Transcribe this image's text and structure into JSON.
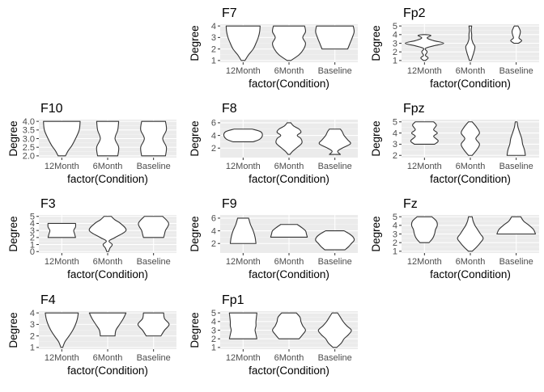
{
  "chart_data": [
    {
      "type": "violin",
      "title": "F7",
      "xlabel": "factor(Condition)",
      "ylabel": "Degree",
      "categories": [
        "12Month",
        "6Month",
        "Baseline"
      ],
      "yticks": [
        "1",
        "2",
        "3",
        "4"
      ],
      "ylim": [
        0.85,
        4.15
      ],
      "violins": [
        {
          "category": "12Month",
          "profile": [
            [
              1,
              0.04
            ],
            [
              1.5,
              0.12
            ],
            [
              2,
              0.22
            ],
            [
              2.5,
              0.28
            ],
            [
              3,
              0.33
            ],
            [
              3.5,
              0.36
            ],
            [
              4,
              0.37
            ]
          ]
        },
        {
          "category": "6Month",
          "profile": [
            [
              1,
              0.04
            ],
            [
              1.5,
              0.22
            ],
            [
              2,
              0.32
            ],
            [
              2.5,
              0.36
            ],
            [
              3,
              0.3
            ],
            [
              3.5,
              0.36
            ],
            [
              4,
              0.34
            ]
          ]
        },
        {
          "category": "Baseline",
          "profile": [
            [
              2,
              0.28
            ],
            [
              2.5,
              0.33
            ],
            [
              3,
              0.38
            ],
            [
              3.5,
              0.42
            ],
            [
              4,
              0.4
            ]
          ]
        }
      ]
    },
    {
      "type": "violin",
      "title": "Fp2",
      "xlabel": "factor(Condition)",
      "ylabel": "Degree",
      "categories": [
        "12Month",
        "6Month",
        "Baseline"
      ],
      "yticks": [
        "1",
        "2",
        "3",
        "4",
        "5"
      ],
      "ylim": [
        0.8,
        5.2
      ],
      "violins": [
        {
          "category": "12Month",
          "profile": [
            [
              1,
              0.02
            ],
            [
              1.3,
              0.08
            ],
            [
              1.6,
              0.02
            ],
            [
              2,
              0.06
            ],
            [
              2.4,
              0.02
            ],
            [
              2.7,
              0.2
            ],
            [
              3,
              0.42
            ],
            [
              3.3,
              0.2
            ],
            [
              3.6,
              0.06
            ],
            [
              3.9,
              0.14
            ],
            [
              4,
              0.02
            ]
          ]
        },
        {
          "category": "6Month",
          "profile": [
            [
              1,
              0.02
            ],
            [
              1.5,
              0.05
            ],
            [
              2,
              0.08
            ],
            [
              2.6,
              0.1
            ],
            [
              3,
              0.06
            ],
            [
              3.5,
              0.03
            ],
            [
              4,
              0.03
            ],
            [
              4.5,
              0.02
            ],
            [
              5,
              0.03
            ]
          ]
        },
        {
          "category": "Baseline",
          "profile": [
            [
              3,
              0.05
            ],
            [
              3.3,
              0.12
            ],
            [
              3.6,
              0.06
            ],
            [
              4,
              0.08
            ],
            [
              4.4,
              0.09
            ],
            [
              4.8,
              0.06
            ],
            [
              5,
              0.04
            ]
          ]
        }
      ]
    },
    {
      "type": "violin",
      "title": "F10",
      "xlabel": "factor(Condition)",
      "ylabel": "Degree",
      "categories": [
        "12Month",
        "6Month",
        "Baseline"
      ],
      "yticks": [
        "2.0",
        "2.5",
        "3.0",
        "3.5",
        "4.0"
      ],
      "ylim": [
        1.9,
        4.1
      ],
      "violins": [
        {
          "category": "12Month",
          "profile": [
            [
              2,
              0.08
            ],
            [
              2.3,
              0.14
            ],
            [
              2.6,
              0.22
            ],
            [
              3,
              0.3
            ],
            [
              3.5,
              0.38
            ],
            [
              4,
              0.4
            ]
          ]
        },
        {
          "category": "6Month",
          "profile": [
            [
              2,
              0.22
            ],
            [
              2.5,
              0.24
            ],
            [
              3,
              0.16
            ],
            [
              3.5,
              0.22
            ],
            [
              4,
              0.24
            ]
          ]
        },
        {
          "category": "Baseline",
          "profile": [
            [
              2,
              0.26
            ],
            [
              2.5,
              0.28
            ],
            [
              3,
              0.2
            ],
            [
              3.5,
              0.28
            ],
            [
              4,
              0.26
            ]
          ]
        }
      ]
    },
    {
      "type": "violin",
      "title": "F8",
      "xlabel": "factor(Condition)",
      "ylabel": "Degree",
      "categories": [
        "12Month",
        "6Month",
        "Baseline"
      ],
      "yticks": [
        "2",
        "4",
        "6"
      ],
      "ylim": [
        0.5,
        6.5
      ],
      "violins": [
        {
          "category": "12Month",
          "profile": [
            [
              3,
              0.22
            ],
            [
              3.4,
              0.36
            ],
            [
              4,
              0.42
            ],
            [
              4.6,
              0.38
            ],
            [
              5,
              0.2
            ]
          ]
        },
        {
          "category": "6Month",
          "profile": [
            [
              1,
              0.02
            ],
            [
              1.5,
              0.08
            ],
            [
              2,
              0.16
            ],
            [
              2.8,
              0.28
            ],
            [
              3.5,
              0.26
            ],
            [
              4,
              0.18
            ],
            [
              4.5,
              0.26
            ],
            [
              5,
              0.22
            ],
            [
              5.5,
              0.1
            ],
            [
              6,
              0.04
            ]
          ]
        },
        {
          "category": "Baseline",
          "profile": [
            [
              1,
              0.12
            ],
            [
              1.5,
              0.06
            ],
            [
              2,
              0.16
            ],
            [
              2.7,
              0.34
            ],
            [
              3.3,
              0.28
            ],
            [
              4,
              0.2
            ],
            [
              4.6,
              0.16
            ],
            [
              5,
              0.12
            ]
          ]
        }
      ]
    },
    {
      "type": "violin",
      "title": "Fpz",
      "xlabel": "factor(Condition)",
      "ylabel": "Degree",
      "categories": [
        "12Month",
        "6Month",
        "Baseline"
      ],
      "yticks": [
        "2",
        "3",
        "4",
        "5"
      ],
      "ylim": [
        1.8,
        5.2
      ],
      "violins": [
        {
          "category": "12Month",
          "profile": [
            [
              3,
              0.22
            ],
            [
              3.3,
              0.3
            ],
            [
              3.7,
              0.2
            ],
            [
              4,
              0.28
            ],
            [
              4.3,
              0.2
            ],
            [
              4.7,
              0.26
            ],
            [
              5,
              0.2
            ]
          ]
        },
        {
          "category": "6Month",
          "profile": [
            [
              2,
              0.04
            ],
            [
              2.5,
              0.14
            ],
            [
              3,
              0.2
            ],
            [
              3.5,
              0.12
            ],
            [
              4,
              0.2
            ],
            [
              4.5,
              0.14
            ],
            [
              5,
              0.04
            ]
          ]
        },
        {
          "category": "Baseline",
          "profile": [
            [
              2,
              0.2
            ],
            [
              2.5,
              0.18
            ],
            [
              3,
              0.14
            ],
            [
              3.5,
              0.12
            ],
            [
              4,
              0.08
            ],
            [
              4.5,
              0.04
            ],
            [
              5,
              0.02
            ]
          ]
        }
      ]
    },
    {
      "type": "violin",
      "title": "F3",
      "xlabel": "factor(Condition)",
      "ylabel": "Degree",
      "categories": [
        "12Month",
        "6Month",
        "Baseline"
      ],
      "yticks": [
        "0",
        "1",
        "2",
        "3",
        "4",
        "5"
      ],
      "ylim": [
        -0.2,
        5.2
      ],
      "violins": [
        {
          "category": "12Month",
          "profile": [
            [
              2,
              0.3
            ],
            [
              2.5,
              0.28
            ],
            [
              3,
              0.26
            ],
            [
              3.5,
              0.3
            ],
            [
              4,
              0.3
            ]
          ]
        },
        {
          "category": "6Month",
          "profile": [
            [
              0,
              0.02
            ],
            [
              0.5,
              0.05
            ],
            [
              1,
              0.1
            ],
            [
              1.5,
              0.03
            ],
            [
              2,
              0.16
            ],
            [
              3,
              0.4
            ],
            [
              4,
              0.28
            ],
            [
              4.5,
              0.16
            ],
            [
              5,
              0.08
            ]
          ]
        },
        {
          "category": "Baseline",
          "profile": [
            [
              2,
              0.22
            ],
            [
              2.5,
              0.24
            ],
            [
              3,
              0.26
            ],
            [
              4,
              0.33
            ],
            [
              5,
              0.2
            ]
          ]
        }
      ]
    },
    {
      "type": "violin",
      "title": "F9",
      "xlabel": "factor(Condition)",
      "ylabel": "Degree",
      "categories": [
        "12Month",
        "6Month",
        "Baseline"
      ],
      "yticks": [
        "2",
        "4",
        "6"
      ],
      "ylim": [
        0.5,
        6.5
      ],
      "violins": [
        {
          "category": "12Month",
          "profile": [
            [
              2,
              0.28
            ],
            [
              3,
              0.26
            ],
            [
              4,
              0.22
            ],
            [
              5,
              0.16
            ],
            [
              6,
              0.12
            ]
          ]
        },
        {
          "category": "6Month",
          "profile": [
            [
              3,
              0.4
            ],
            [
              3.5,
              0.38
            ],
            [
              4,
              0.36
            ],
            [
              4.5,
              0.28
            ],
            [
              5,
              0.18
            ]
          ]
        },
        {
          "category": "Baseline",
          "profile": [
            [
              1,
              0.22
            ],
            [
              1.5,
              0.3
            ],
            [
              2,
              0.36
            ],
            [
              2.5,
              0.42
            ],
            [
              3,
              0.4
            ],
            [
              3.5,
              0.32
            ],
            [
              4,
              0.2
            ]
          ]
        }
      ]
    },
    {
      "type": "violin",
      "title": "Fz",
      "xlabel": "factor(Condition)",
      "ylabel": "Degree",
      "categories": [
        "12Month",
        "6Month",
        "Baseline"
      ],
      "yticks": [
        "1",
        "2",
        "3",
        "4",
        "5"
      ],
      "ylim": [
        0.8,
        5.2
      ],
      "violins": [
        {
          "category": "12Month",
          "profile": [
            [
              2,
              0.1
            ],
            [
              2.5,
              0.18
            ],
            [
              3,
              0.22
            ],
            [
              3.5,
              0.24
            ],
            [
              4,
              0.28
            ],
            [
              4.5,
              0.26
            ],
            [
              5,
              0.16
            ]
          ]
        },
        {
          "category": "6Month",
          "profile": [
            [
              1,
              0.04
            ],
            [
              1.5,
              0.14
            ],
            [
              2,
              0.22
            ],
            [
              2.5,
              0.28
            ],
            [
              3,
              0.22
            ],
            [
              3.5,
              0.16
            ],
            [
              4,
              0.1
            ],
            [
              4.5,
              0.06
            ],
            [
              5,
              0.04
            ]
          ]
        },
        {
          "category": "Baseline",
          "profile": [
            [
              3,
              0.42
            ],
            [
              3.5,
              0.38
            ],
            [
              4,
              0.28
            ],
            [
              4.5,
              0.16
            ],
            [
              5,
              0.1
            ]
          ]
        }
      ]
    },
    {
      "type": "violin",
      "title": "F4",
      "xlabel": "factor(Condition)",
      "ylabel": "Degree",
      "categories": [
        "12Month",
        "6Month",
        "Baseline"
      ],
      "yticks": [
        "1",
        "2",
        "3",
        "4"
      ],
      "ylim": [
        0.85,
        4.15
      ],
      "violins": [
        {
          "category": "12Month",
          "profile": [
            [
              1,
              0.02
            ],
            [
              1.5,
              0.07
            ],
            [
              2,
              0.16
            ],
            [
              2.5,
              0.24
            ],
            [
              3,
              0.3
            ],
            [
              3.5,
              0.34
            ],
            [
              4,
              0.36
            ]
          ]
        },
        {
          "category": "6Month",
          "profile": [
            [
              2,
              0.16
            ],
            [
              2.5,
              0.18
            ],
            [
              3,
              0.26
            ],
            [
              3.5,
              0.34
            ],
            [
              4,
              0.4
            ]
          ]
        },
        {
          "category": "Baseline",
          "profile": [
            [
              2,
              0.16
            ],
            [
              2.5,
              0.24
            ],
            [
              3,
              0.34
            ],
            [
              3.5,
              0.24
            ],
            [
              4,
              0.22
            ]
          ]
        }
      ]
    },
    {
      "type": "violin",
      "title": "Fp1",
      "xlabel": "factor(Condition)",
      "ylabel": "Degree",
      "categories": [
        "12Month",
        "6Month",
        "Baseline"
      ],
      "yticks": [
        "1",
        "2",
        "3",
        "4",
        "5"
      ],
      "ylim": [
        0.8,
        5.2
      ],
      "violins": [
        {
          "category": "12Month",
          "profile": [
            [
              2,
              0.3
            ],
            [
              2.5,
              0.28
            ],
            [
              3,
              0.26
            ],
            [
              3.5,
              0.28
            ],
            [
              4,
              0.28
            ],
            [
              5,
              0.3
            ]
          ]
        },
        {
          "category": "6Month",
          "profile": [
            [
              2,
              0.22
            ],
            [
              2.5,
              0.3
            ],
            [
              3,
              0.36
            ],
            [
              3.5,
              0.3
            ],
            [
              4,
              0.26
            ],
            [
              4.5,
              0.24
            ],
            [
              5,
              0.16
            ]
          ]
        },
        {
          "category": "Baseline",
          "profile": [
            [
              1,
              0.04
            ],
            [
              1.5,
              0.14
            ],
            [
              2,
              0.2
            ],
            [
              2.5,
              0.3
            ],
            [
              3,
              0.36
            ],
            [
              3.5,
              0.26
            ],
            [
              4,
              0.18
            ],
            [
              4.5,
              0.12
            ],
            [
              5,
              0.06
            ]
          ]
        }
      ]
    }
  ]
}
